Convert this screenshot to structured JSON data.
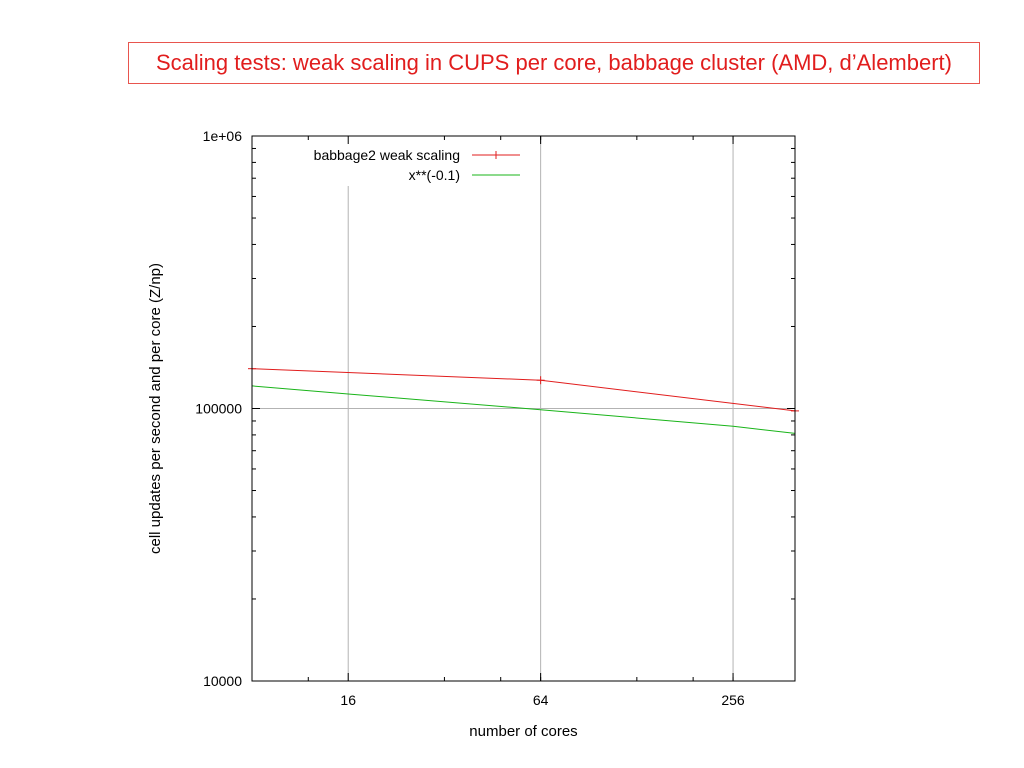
{
  "slide": {
    "title": "Scaling tests: weak scaling in CUPS per core, babbage cluster (AMD, d’Alembert)"
  },
  "colors": {
    "title_text": "#e11d1d",
    "title_border": "#e8554e",
    "series_measured": "#e11d1d",
    "series_reference": "#19b419",
    "grid": "#b3b3b3"
  },
  "chart_data": {
    "type": "line",
    "xlabel": "number of cores",
    "ylabel": "cell updates per second and per core (Z/np)",
    "x_scale": "log",
    "y_scale": "log",
    "xlim": [
      8,
      400
    ],
    "ylim": [
      10000,
      1000000
    ],
    "x_ticks": [
      {
        "value": 16,
        "label": "16"
      },
      {
        "value": 64,
        "label": "64"
      },
      {
        "value": 256,
        "label": "256"
      }
    ],
    "y_ticks": [
      {
        "value": 10000,
        "label": "10000"
      },
      {
        "value": 100000,
        "label": "100000"
      },
      {
        "value": 1000000,
        "label": "1e+06"
      }
    ],
    "grid": true,
    "legend_position": "top-right",
    "series": [
      {
        "name": "babbage2 weak scaling",
        "style": "linespoints",
        "x": [
          8,
          64,
          400
        ],
        "y": [
          140000,
          127000,
          98000
        ]
      },
      {
        "name": "x**(-0.1)",
        "style": "function",
        "function": "x**(-0.1)",
        "coefficient": 150000,
        "x": [
          8,
          16,
          64,
          256,
          400
        ],
        "y": [
          121000,
          113000,
          99000,
          86000,
          81000
        ]
      }
    ]
  }
}
